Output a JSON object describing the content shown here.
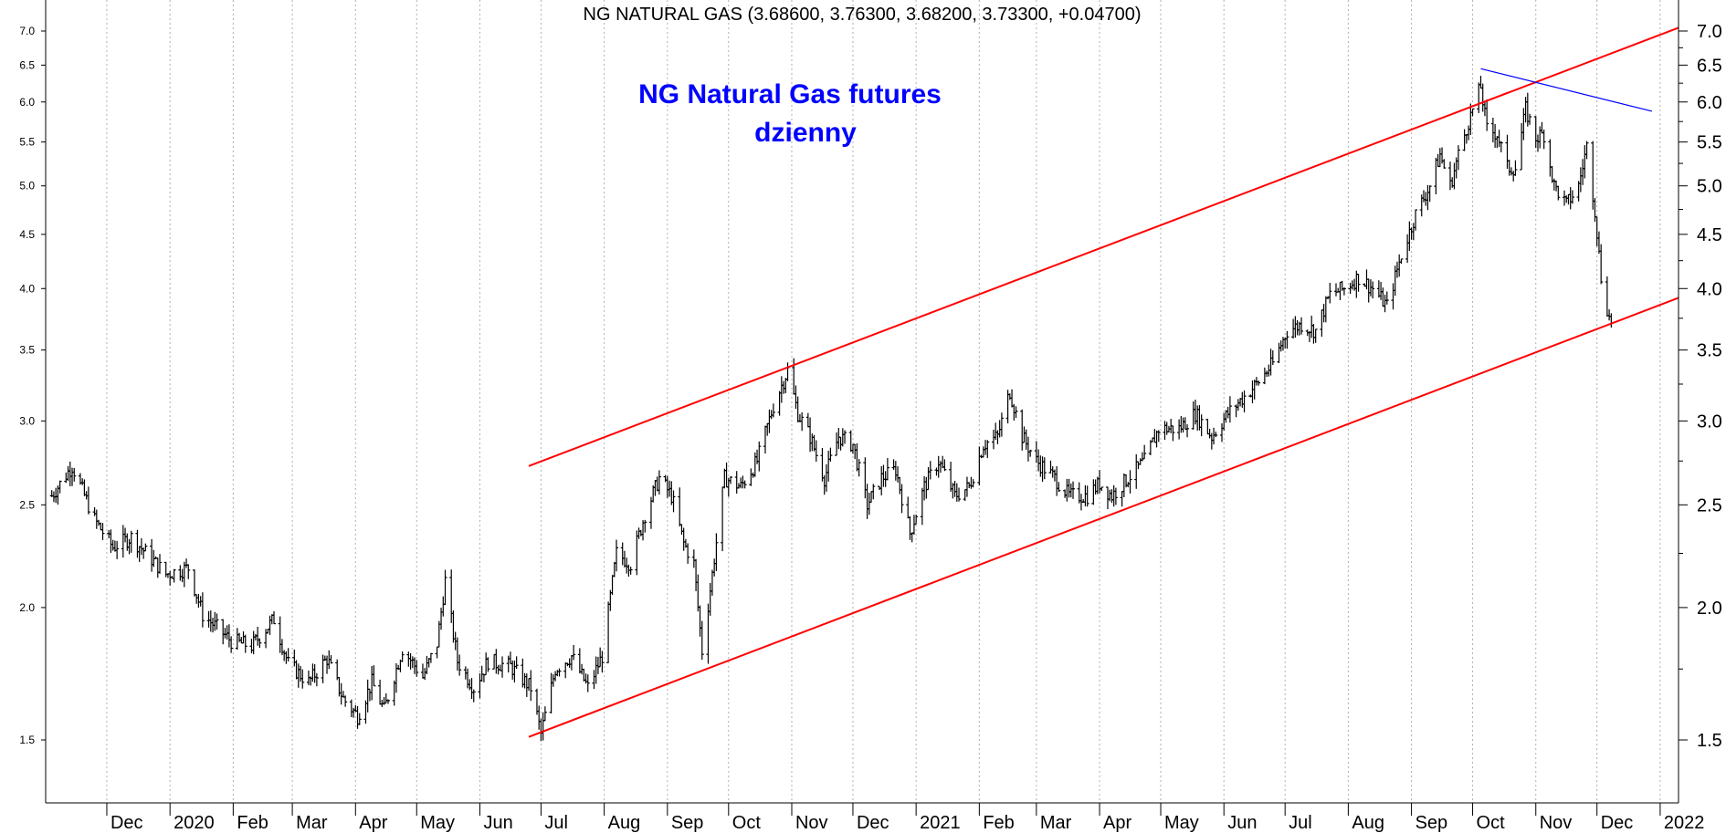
{
  "chart_data": {
    "type": "candlestick",
    "title": "NG NATURAL GAS (3.68600, 3.76300, 3.68200, 3.73300, +0.04700)",
    "annotation": {
      "line1": "NG Natural Gas futures",
      "line2": "dzienny",
      "color": "#0000ff"
    },
    "scale": "log",
    "ylim": [
      1.33,
      7.6
    ],
    "left_ticks": [
      "1.5",
      "2.0",
      "2.5",
      "3.0",
      "3.5",
      "4.0",
      "4.5",
      "5.0",
      "5.5",
      "6.0",
      "6.5",
      "7.0"
    ],
    "right_ticks": [
      "1.5",
      "2.0",
      "2.5",
      "3.0",
      "3.5",
      "4.0",
      "4.5",
      "5.0",
      "5.5",
      "6.0",
      "6.5",
      "7.0"
    ],
    "x_axis": {
      "start": "2019-11-01",
      "end": "2022-01-10",
      "labels": [
        {
          "date": "2019-12-01",
          "label": "Dec"
        },
        {
          "date": "2020-01-01",
          "label": "2020"
        },
        {
          "date": "2020-02-01",
          "label": "Feb"
        },
        {
          "date": "2020-03-01",
          "label": "Mar"
        },
        {
          "date": "2020-04-01",
          "label": "Apr"
        },
        {
          "date": "2020-05-01",
          "label": "May"
        },
        {
          "date": "2020-06-01",
          "label": "Jun"
        },
        {
          "date": "2020-07-01",
          "label": "Jul"
        },
        {
          "date": "2020-08-01",
          "label": "Aug"
        },
        {
          "date": "2020-09-01",
          "label": "Sep"
        },
        {
          "date": "2020-10-01",
          "label": "Oct"
        },
        {
          "date": "2020-11-01",
          "label": "Nov"
        },
        {
          "date": "2020-12-01",
          "label": "Dec"
        },
        {
          "date": "2021-01-01",
          "label": "2021"
        },
        {
          "date": "2021-02-01",
          "label": "Feb"
        },
        {
          "date": "2021-03-01",
          "label": "Mar"
        },
        {
          "date": "2021-04-01",
          "label": "Apr"
        },
        {
          "date": "2021-05-01",
          "label": "May"
        },
        {
          "date": "2021-06-01",
          "label": "Jun"
        },
        {
          "date": "2021-07-01",
          "label": "Jul"
        },
        {
          "date": "2021-08-01",
          "label": "Aug"
        },
        {
          "date": "2021-09-01",
          "label": "Sep"
        },
        {
          "date": "2021-10-01",
          "label": "Oct"
        },
        {
          "date": "2021-11-01",
          "label": "Nov"
        },
        {
          "date": "2021-12-01",
          "label": "Dec"
        },
        {
          "date": "2022-01-01",
          "label": "2022"
        }
      ]
    },
    "price_path": [
      [
        "2019-11-04",
        2.55
      ],
      [
        "2019-11-14",
        2.72
      ],
      [
        "2019-11-25",
        2.42
      ],
      [
        "2019-12-04",
        2.28
      ],
      [
        "2019-12-13",
        2.33
      ],
      [
        "2019-12-30",
        2.15
      ],
      [
        "2020-01-10",
        2.18
      ],
      [
        "2020-01-17",
        1.97
      ],
      [
        "2020-01-31",
        1.86
      ],
      [
        "2020-02-10",
        1.84
      ],
      [
        "2020-02-21",
        1.95
      ],
      [
        "2020-02-28",
        1.77
      ],
      [
        "2020-03-09",
        1.7
      ],
      [
        "2020-03-18",
        1.79
      ],
      [
        "2020-03-26",
        1.64
      ],
      [
        "2020-04-02",
        1.58
      ],
      [
        "2020-04-09",
        1.7
      ],
      [
        "2020-04-15",
        1.6
      ],
      [
        "2020-04-24",
        1.83
      ],
      [
        "2020-05-04",
        1.72
      ],
      [
        "2020-05-11",
        1.85
      ],
      [
        "2020-05-15",
        2.12
      ],
      [
        "2020-05-21",
        1.78
      ],
      [
        "2020-05-29",
        1.68
      ],
      [
        "2020-06-05",
        1.78
      ],
      [
        "2020-06-16",
        1.76
      ],
      [
        "2020-06-26",
        1.68
      ],
      [
        "2020-07-01",
        1.52
      ],
      [
        "2020-07-08",
        1.75
      ],
      [
        "2020-07-16",
        1.8
      ],
      [
        "2020-07-24",
        1.68
      ],
      [
        "2020-07-31",
        1.8
      ],
      [
        "2020-08-07",
        2.25
      ],
      [
        "2020-08-14",
        2.2
      ],
      [
        "2020-08-21",
        2.45
      ],
      [
        "2020-08-28",
        2.65
      ],
      [
        "2020-09-03",
        2.55
      ],
      [
        "2020-09-09",
        2.3
      ],
      [
        "2020-09-14",
        2.2
      ],
      [
        "2020-09-18",
        1.82
      ],
      [
        "2020-09-23",
        2.15
      ],
      [
        "2020-09-29",
        2.65
      ],
      [
        "2020-10-07",
        2.6
      ],
      [
        "2020-10-15",
        2.75
      ],
      [
        "2020-10-23",
        3.1
      ],
      [
        "2020-10-30",
        3.35
      ],
      [
        "2020-11-04",
        3.05
      ],
      [
        "2020-11-10",
        2.9
      ],
      [
        "2020-11-17",
        2.65
      ],
      [
        "2020-11-24",
        2.9
      ],
      [
        "2020-12-01",
        2.85
      ],
      [
        "2020-12-08",
        2.5
      ],
      [
        "2020-12-15",
        2.65
      ],
      [
        "2020-12-22",
        2.7
      ],
      [
        "2020-12-29",
        2.35
      ],
      [
        "2021-01-05",
        2.6
      ],
      [
        "2021-01-12",
        2.75
      ],
      [
        "2021-01-20",
        2.55
      ],
      [
        "2021-01-27",
        2.6
      ],
      [
        "2021-02-03",
        2.85
      ],
      [
        "2021-02-10",
        2.9
      ],
      [
        "2021-02-16",
        3.2
      ],
      [
        "2021-02-22",
        2.9
      ],
      [
        "2021-03-01",
        2.75
      ],
      [
        "2021-03-10",
        2.65
      ],
      [
        "2021-03-17",
        2.55
      ],
      [
        "2021-03-26",
        2.55
      ],
      [
        "2021-04-01",
        2.62
      ],
      [
        "2021-04-07",
        2.55
      ],
      [
        "2021-04-15",
        2.65
      ],
      [
        "2021-04-23",
        2.75
      ],
      [
        "2021-04-30",
        2.95
      ],
      [
        "2021-05-10",
        2.95
      ],
      [
        "2021-05-18",
        3.05
      ],
      [
        "2021-05-26",
        2.9
      ],
      [
        "2021-06-03",
        3.05
      ],
      [
        "2021-06-10",
        3.15
      ],
      [
        "2021-06-17",
        3.25
      ],
      [
        "2021-06-25",
        3.4
      ],
      [
        "2021-07-02",
        3.65
      ],
      [
        "2021-07-09",
        3.7
      ],
      [
        "2021-07-16",
        3.65
      ],
      [
        "2021-07-23",
        3.95
      ],
      [
        "2021-07-30",
        4.0
      ],
      [
        "2021-08-06",
        4.1
      ],
      [
        "2021-08-13",
        4.0
      ],
      [
        "2021-08-20",
        3.85
      ],
      [
        "2021-08-27",
        4.3
      ],
      [
        "2021-09-03",
        4.7
      ],
      [
        "2021-09-10",
        5.0
      ],
      [
        "2021-09-15",
        5.35
      ],
      [
        "2021-09-20",
        5.0
      ],
      [
        "2021-09-24",
        5.35
      ],
      [
        "2021-09-29",
        5.75
      ],
      [
        "2021-10-05",
        6.2
      ],
      [
        "2021-10-08",
        5.65
      ],
      [
        "2021-10-13",
        5.6
      ],
      [
        "2021-10-18",
        5.2
      ],
      [
        "2021-10-22",
        5.2
      ],
      [
        "2021-10-27",
        5.9
      ],
      [
        "2021-11-01",
        5.55
      ],
      [
        "2021-11-05",
        5.6
      ],
      [
        "2021-11-10",
        5.0
      ],
      [
        "2021-11-16",
        4.8
      ],
      [
        "2021-11-22",
        5.0
      ],
      [
        "2021-11-26",
        5.45
      ],
      [
        "2021-11-30",
        4.75
      ],
      [
        "2021-12-03",
        4.1
      ],
      [
        "2021-12-07",
        3.75
      ],
      [
        "2021-12-08",
        3.73
      ]
    ],
    "trend_lines": [
      {
        "color": "#ff0000",
        "from": [
          "2020-06-25",
          2.72
        ],
        "to": [
          "2022-01-10",
          7.05
        ]
      },
      {
        "color": "#ff0000",
        "from": [
          "2020-06-25",
          1.51
        ],
        "to": [
          "2022-01-10",
          3.92
        ]
      },
      {
        "color": "#0000ff",
        "from": [
          "2021-10-05",
          6.45
        ],
        "to": [
          "2021-12-28",
          5.88
        ]
      }
    ],
    "grid": "vertical dotted",
    "legend": "none"
  }
}
